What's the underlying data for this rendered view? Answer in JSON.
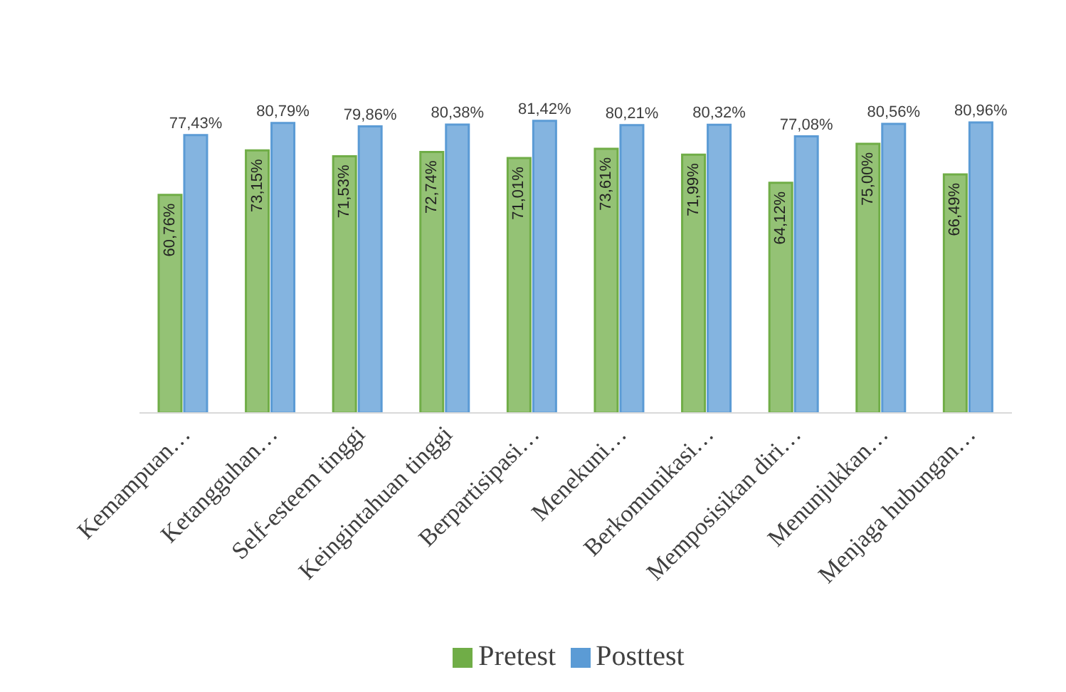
{
  "chart_data": {
    "type": "bar",
    "categories": [
      "Kemampuan…",
      "Ketangguhan…",
      "Self-esteem tinggi",
      "Keingintahuan tinggi",
      "Berpartisipasi…",
      "Menekuni…",
      "Berkomunikasi…",
      "Memposisikan diri…",
      "Menunjukkan…",
      "Menjaga hubungan…"
    ],
    "series": [
      {
        "name": "Pretest",
        "color": "#70ad47",
        "values": [
          60.76,
          73.15,
          71.53,
          72.74,
          71.01,
          73.61,
          71.99,
          64.12,
          75.0,
          66.49
        ],
        "value_labels": [
          "60,76%",
          "73,15%",
          "71,53%",
          "72,74%",
          "71,01%",
          "73,61%",
          "71,99%",
          "64,12%",
          "75,00%",
          "66,49%"
        ]
      },
      {
        "name": "Posttest",
        "color": "#5b9bd5",
        "values": [
          77.43,
          80.79,
          79.86,
          80.38,
          81.42,
          80.21,
          80.32,
          77.08,
          80.56,
          80.96
        ],
        "value_labels": [
          "77,43%",
          "80,79%",
          "79,86%",
          "80,38%",
          "81,42%",
          "80,21%",
          "80,32%",
          "77,08%",
          "80,56%",
          "80,96%"
        ]
      }
    ],
    "tick_labels": "x",
    "legend": "bottom"
  }
}
